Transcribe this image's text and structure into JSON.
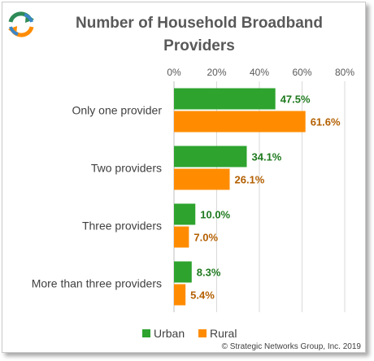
{
  "chart_data": {
    "type": "bar",
    "orientation": "horizontal",
    "title": "Number of Household Broadband Providers",
    "categories": [
      "Only one provider",
      "Two providers",
      "Three providers",
      "More than three providers"
    ],
    "series": [
      {
        "name": "Urban",
        "values": [
          47.5,
          34.1,
          10.0,
          8.3
        ],
        "color": "#2ea32e",
        "label_color": "#1f7a1f"
      },
      {
        "name": "Rural",
        "values": [
          61.6,
          26.1,
          7.0,
          5.4
        ],
        "color": "#ff8c00",
        "label_color": "#b35f00"
      }
    ],
    "data_labels": [
      [
        "47.5%",
        "61.6%"
      ],
      [
        "34.1%",
        "26.1%"
      ],
      [
        "10.0%",
        "7.0%"
      ],
      [
        "8.3%",
        "5.4%"
      ]
    ],
    "xlim": [
      0,
      80
    ],
    "xticks": [
      "0%",
      "20%",
      "40%",
      "60%",
      "80%"
    ],
    "xaxis_position": "top",
    "grid": true,
    "legend_position": "bottom"
  },
  "copyright": "© Strategic Networks Group, Inc. 2019",
  "logo_icon": "circular-arrows-logo-icon"
}
